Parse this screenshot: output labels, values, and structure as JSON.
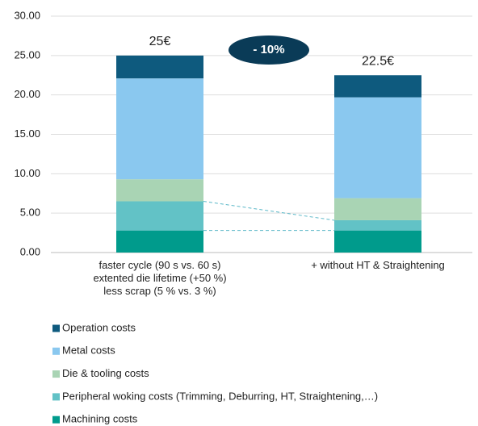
{
  "chart_data": {
    "type": "stacked_bar",
    "categories": [
      "faster cycle (90 s vs. 60 s)\nextented die lifetime (+50 %)\nless scrap (5 % vs. 3 %)",
      "+ without HT & Straightening"
    ],
    "series": [
      {
        "name": "Machining costs",
        "color": "#009b8c",
        "values": [
          2.8,
          2.8
        ]
      },
      {
        "name": "Peripheral woking costs (Trimming, Deburring, HT, Straightening,…)",
        "color": "#62c2c6",
        "values": [
          3.7,
          1.3
        ]
      },
      {
        "name": "Die & tooling costs",
        "color": "#a9d4b4",
        "values": [
          2.8,
          2.8
        ]
      },
      {
        "name": "Metal costs",
        "color": "#8ac8ef",
        "values": [
          12.8,
          12.8
        ]
      },
      {
        "name": "Operation costs",
        "color": "#0e5a7e",
        "values": [
          2.9,
          2.8
        ]
      }
    ],
    "total_labels": [
      "25€",
      "22.5€"
    ],
    "change_label": "- 10%",
    "ylim": [
      0,
      30
    ],
    "yticks": [
      {
        "value": 0,
        "label": "0.00"
      },
      {
        "value": 5,
        "label": "5.00"
      },
      {
        "value": 10,
        "label": "10.00"
      },
      {
        "value": 15,
        "label": "15.00"
      },
      {
        "value": 20,
        "label": "20.00"
      },
      {
        "value": 25,
        "label": "25.00"
      },
      {
        "value": 30,
        "label": "30.00"
      }
    ],
    "grid": true
  }
}
